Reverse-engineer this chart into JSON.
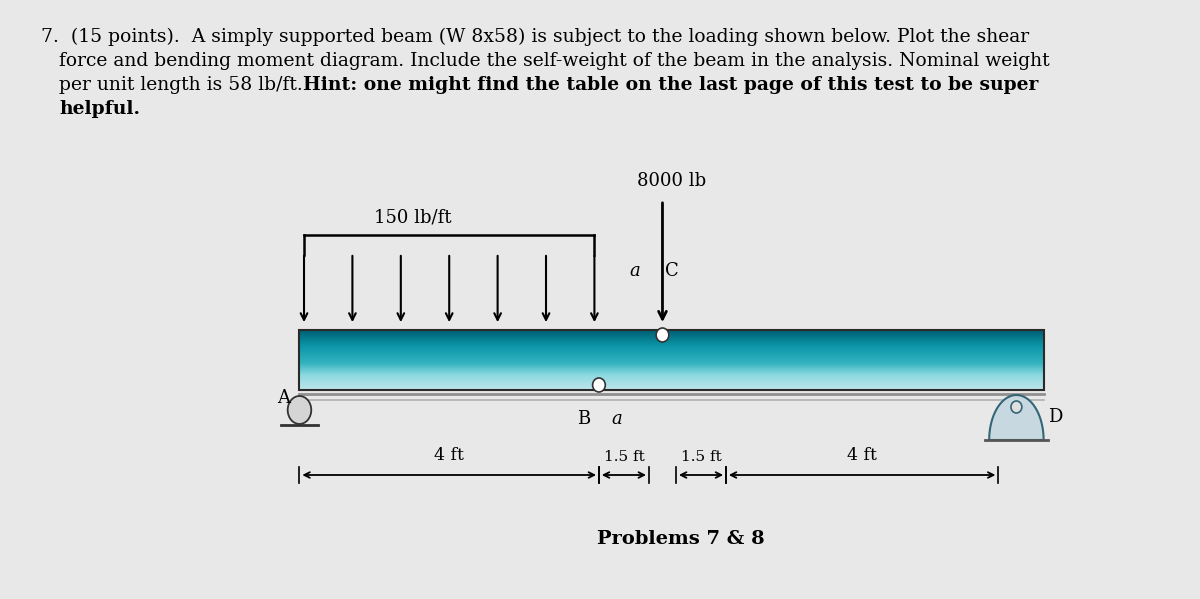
{
  "bg_color": "#e8e8e8",
  "title_lines": [
    [
      "7.  (15 points).  A simply supported beam (W 8x58) is subject to the loading shown below. Plot the shear",
      false
    ],
    [
      "    force and bending moment diagram. Include the self-weight of the beam in the analysis. Nominal weight",
      false
    ],
    [
      "    per unit length is 58 lb/ft. ",
      false
    ],
    [
      "Hint: one might find the table on the last page of this test to be super",
      true
    ],
    [
      "    helpful.",
      true
    ]
  ],
  "dist_load_label": "150 lb/ft",
  "point_load_label": "8000 lb",
  "label_A": "A",
  "label_B": "B",
  "label_C": "C",
  "label_D": "D",
  "label_a1": "a",
  "label_a2": "a",
  "dim_labels": [
    "4 ft",
    "1.5 ft",
    "1.5 ft",
    "4 ft"
  ],
  "problems_label": "Problems 7 & 8",
  "beam_top_color": "#005f73",
  "beam_mid_color": "#0a9396",
  "beam_light_color": "#7ecece",
  "beam_pale_color": "#b8e0e0"
}
